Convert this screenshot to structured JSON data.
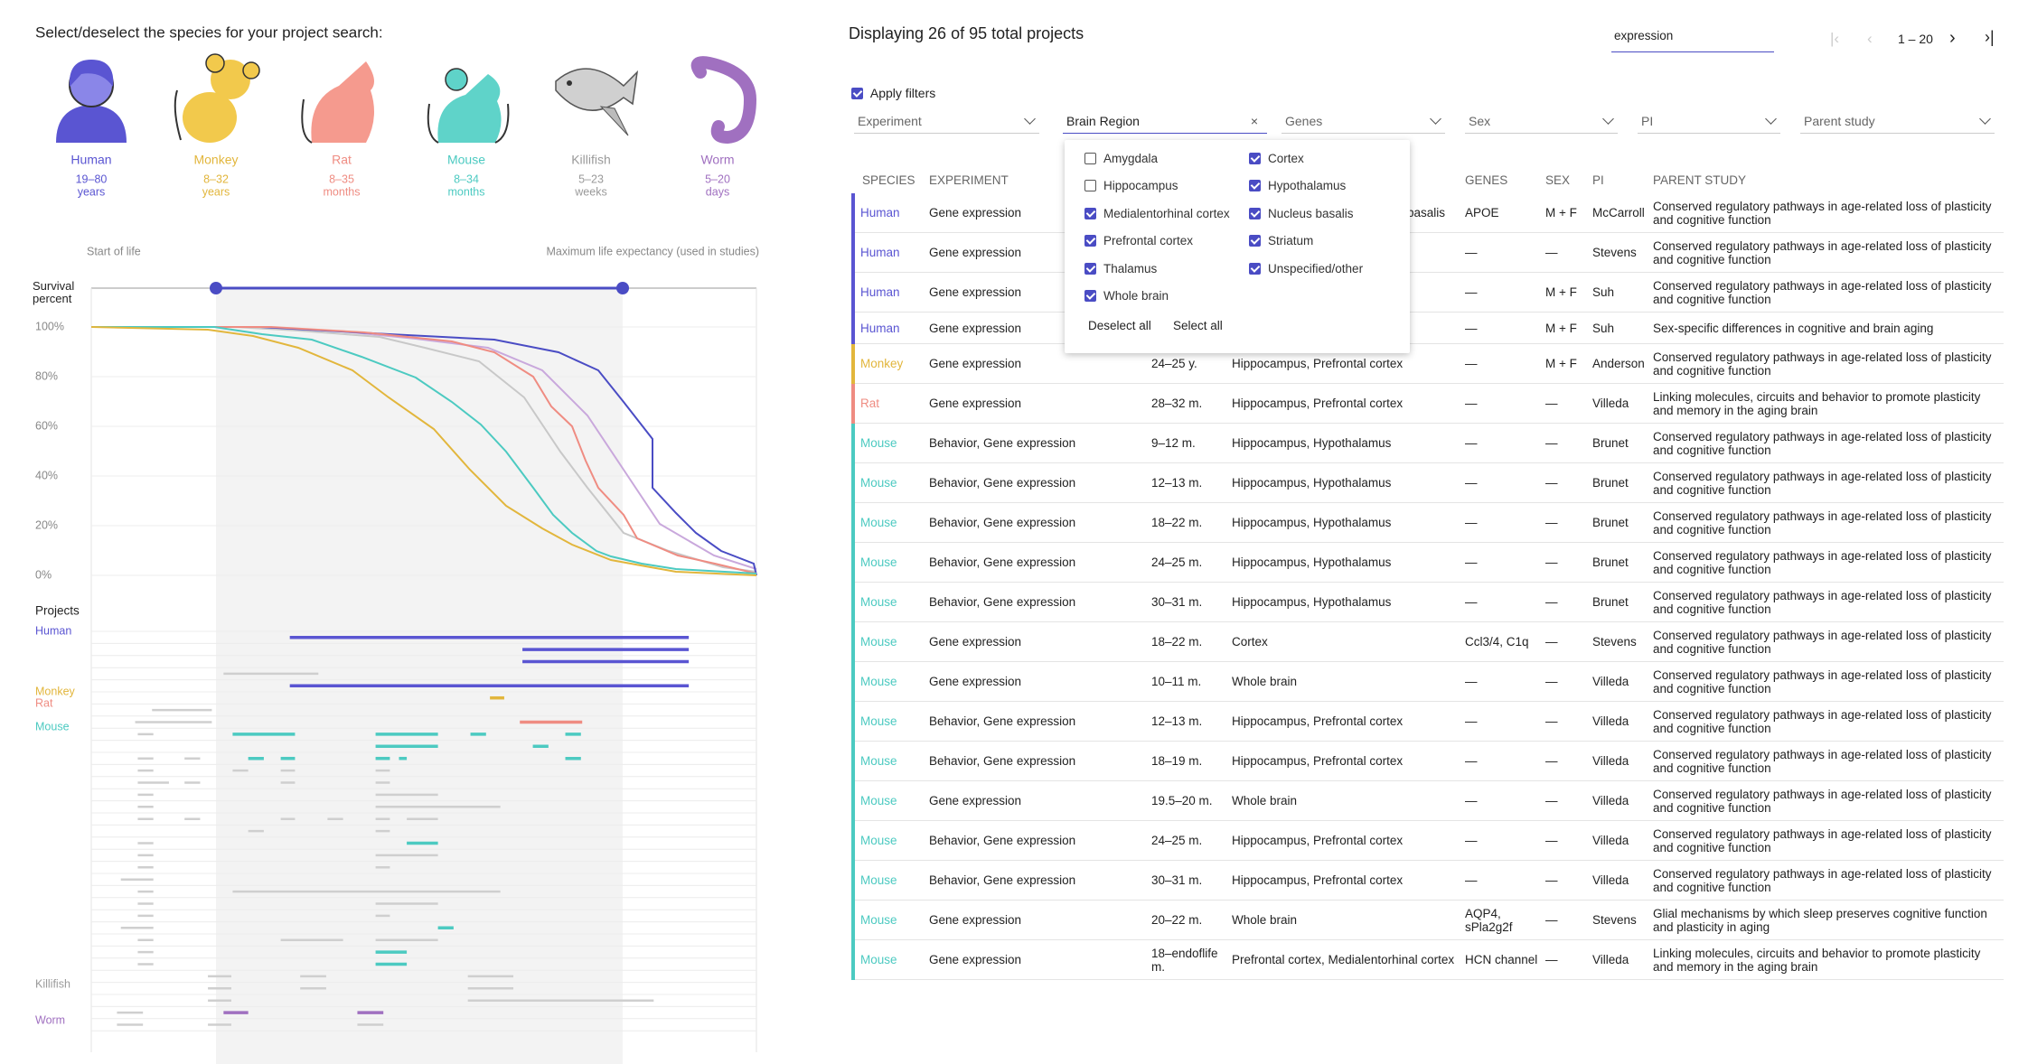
{
  "species_panel": {
    "title": "Select/deselect the species for your project search:",
    "species": [
      {
        "name": "Human",
        "range": "19–80",
        "unit": "years",
        "color": "#5a55d2"
      },
      {
        "name": "Monkey",
        "range": "8–32",
        "unit": "years",
        "color": "#e2b63c"
      },
      {
        "name": "Rat",
        "range": "8–35",
        "unit": "months",
        "color": "#ef8c82"
      },
      {
        "name": "Mouse",
        "range": "8–34",
        "unit": "months",
        "color": "#4ccac1"
      },
      {
        "name": "Killifish",
        "range": "5–23",
        "unit": "weeks",
        "color": "#9a9a9a"
      },
      {
        "name": "Worm",
        "range": "5–20",
        "unit": "days",
        "color": "#a070c0"
      }
    ]
  },
  "survival": {
    "start_label": "Start of life",
    "end_label": "Maximum life expectancy (used in studies)",
    "y_label": "Survival percent",
    "y_ticks": [
      "100%",
      "80%",
      "60%",
      "40%",
      "20%",
      "0%"
    ]
  },
  "projects": {
    "title": "Projects"
  },
  "results": {
    "summary": "Displaying 26 of 95 total projects",
    "search": "expression",
    "page_range": "1 – 20",
    "apply_filters": "Apply filters",
    "apply_checked": true,
    "filters": [
      "Experiment",
      "Brain Region",
      "Genes",
      "Sex",
      "PI",
      "Parent study"
    ],
    "columns": [
      "SPECIES",
      "EXPERIMENT",
      null,
      null,
      "GENES",
      "SEX",
      "PI",
      "PARENT STUDY"
    ],
    "rows": [
      [
        "Human",
        "Gene expression",
        null,
        "basalis",
        "APOE",
        "M + F",
        "McCarroll",
        "Conserved regulatory pathways in age-related loss of plasticity and cognitive function"
      ],
      [
        "Human",
        "Gene expression",
        null,
        null,
        "—",
        "—",
        "Stevens",
        "Conserved regulatory pathways in age-related loss of plasticity and cognitive function"
      ],
      [
        "Human",
        "Gene expression",
        null,
        null,
        "—",
        "M + F",
        "Suh",
        "Conserved regulatory pathways in age-related loss of plasticity and cognitive function"
      ],
      [
        "Human",
        "Gene expression",
        null,
        null,
        "—",
        "M + F",
        "Suh",
        "Sex-specific differences in cognitive and brain aging"
      ],
      [
        "Monkey",
        "Gene expression",
        "24–25 y.",
        "Hippocampus, Prefrontal cortex",
        "—",
        "M + F",
        "Anderson",
        "Conserved regulatory pathways in age-related loss of plasticity and cognitive function"
      ],
      [
        "Rat",
        "Gene expression",
        "28–32 m.",
        "Hippocampus, Prefrontal cortex",
        "—",
        "—",
        "Villeda",
        "Linking molecules, circuits and behavior to promote plasticity and memory in the aging brain"
      ],
      [
        "Mouse",
        "Behavior, Gene expression",
        "9–12 m.",
        "Hippocampus, Hypothalamus",
        "—",
        "—",
        "Brunet",
        "Conserved regulatory pathways in age-related loss of plasticity and cognitive function"
      ],
      [
        "Mouse",
        "Behavior, Gene expression",
        "12–13 m.",
        "Hippocampus, Hypothalamus",
        "—",
        "—",
        "Brunet",
        "Conserved regulatory pathways in age-related loss of plasticity and cognitive function"
      ],
      [
        "Mouse",
        "Behavior, Gene expression",
        "18–22 m.",
        "Hippocampus, Hypothalamus",
        "—",
        "—",
        "Brunet",
        "Conserved regulatory pathways in age-related loss of plasticity and cognitive function"
      ],
      [
        "Mouse",
        "Behavior, Gene expression",
        "24–25 m.",
        "Hippocampus, Hypothalamus",
        "—",
        "—",
        "Brunet",
        "Conserved regulatory pathways in age-related loss of plasticity and cognitive function"
      ],
      [
        "Mouse",
        "Behavior, Gene expression",
        "30–31 m.",
        "Hippocampus, Hypothalamus",
        "—",
        "—",
        "Brunet",
        "Conserved regulatory pathways in age-related loss of plasticity and cognitive function"
      ],
      [
        "Mouse",
        "Gene expression",
        "18–22 m.",
        "Cortex",
        "Ccl3/4, C1q",
        "—",
        "Stevens",
        "Conserved regulatory pathways in age-related loss of plasticity and cognitive function"
      ],
      [
        "Mouse",
        "Gene expression",
        "10–11 m.",
        "Whole brain",
        "—",
        "—",
        "Villeda",
        "Conserved regulatory pathways in age-related loss of plasticity and cognitive function"
      ],
      [
        "Mouse",
        "Behavior, Gene expression",
        "12–13 m.",
        "Hippocampus, Prefrontal cortex",
        "—",
        "—",
        "Villeda",
        "Conserved regulatory pathways in age-related loss of plasticity and cognitive function"
      ],
      [
        "Mouse",
        "Behavior, Gene expression",
        "18–19 m.",
        "Hippocampus, Prefrontal cortex",
        "—",
        "—",
        "Villeda",
        "Conserved regulatory pathways in age-related loss of plasticity and cognitive function"
      ],
      [
        "Mouse",
        "Gene expression",
        "19.5–20 m.",
        "Whole brain",
        "—",
        "—",
        "Villeda",
        "Conserved regulatory pathways in age-related loss of plasticity and cognitive function"
      ],
      [
        "Mouse",
        "Behavior, Gene expression",
        "24–25 m.",
        "Hippocampus, Prefrontal cortex",
        "—",
        "—",
        "Villeda",
        "Conserved regulatory pathways in age-related loss of plasticity and cognitive function"
      ],
      [
        "Mouse",
        "Behavior, Gene expression",
        "30–31 m.",
        "Hippocampus, Prefrontal cortex",
        "—",
        "—",
        "Villeda",
        "Conserved regulatory pathways in age-related loss of plasticity and cognitive function"
      ],
      [
        "Mouse",
        "Gene expression",
        "20–22 m.",
        "Whole brain",
        "AQP4, sPla2g2f",
        "—",
        "Stevens",
        "Glial mechanisms by which sleep preserves cognitive function and plasticity in aging"
      ],
      [
        "Mouse",
        "Gene expression",
        "18–endoflife m.",
        "Prefrontal cortex, Medialentorhinal cortex",
        "HCN channel",
        "—",
        "Villeda",
        "Linking molecules, circuits and behavior to promote plasticity and memory in the aging brain"
      ]
    ]
  },
  "dropdown": {
    "options": [
      {
        "label": "Amygdala",
        "checked": false
      },
      {
        "label": "Hippocampus",
        "checked": false
      },
      {
        "label": "Medialentorhinal cortex",
        "checked": true
      },
      {
        "label": "Prefrontal cortex",
        "checked": true
      },
      {
        "label": "Thalamus",
        "checked": true
      },
      {
        "label": "Whole brain",
        "checked": true
      },
      {
        "label": "Cortex",
        "checked": true
      },
      {
        "label": "Hypothalamus",
        "checked": true
      },
      {
        "label": "Nucleus basalis",
        "checked": true
      },
      {
        "label": "Striatum",
        "checked": true
      },
      {
        "label": "Unspecified/other",
        "checked": true
      }
    ],
    "deselect": "Deselect all",
    "select": "Select all"
  }
}
